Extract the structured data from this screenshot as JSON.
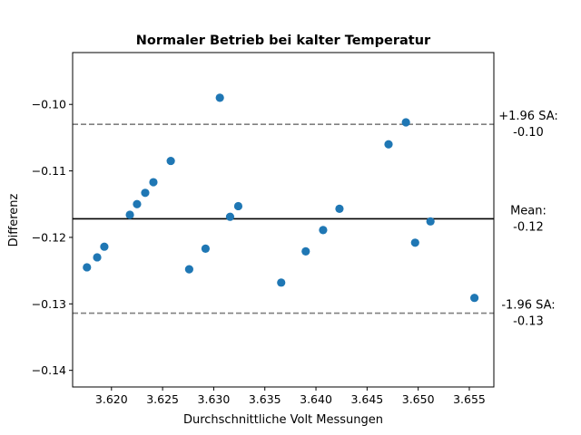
{
  "chart_data": {
    "type": "scatter",
    "title": "Normaler Betrieb bei kalter Temperatur",
    "xlabel": "Durchschnittliche Volt Messungen",
    "ylabel": "Differenz",
    "xlim": [
      3.6162,
      3.6574
    ],
    "ylim": [
      -0.1425,
      -0.0922
    ],
    "xticks": [
      3.62,
      3.625,
      3.63,
      3.635,
      3.64,
      3.645,
      3.65,
      3.655
    ],
    "xtick_labels": [
      "3.620",
      "3.625",
      "3.630",
      "3.635",
      "3.640",
      "3.645",
      "3.650",
      "3.655"
    ],
    "yticks": [
      -0.1,
      -0.11,
      -0.12,
      -0.13,
      -0.14
    ],
    "ytick_labels": [
      "−0.10",
      "−0.11",
      "−0.12",
      "−0.13",
      "−0.14"
    ],
    "grid": false,
    "point_color": "#1f77b4",
    "series": [
      {
        "x": [
          3.6176,
          3.6186,
          3.6193,
          3.6218,
          3.6225,
          3.6233,
          3.6241,
          3.6258,
          3.6276,
          3.6292,
          3.6306,
          3.6316,
          3.6324,
          3.6366,
          3.639,
          3.6407,
          3.6423,
          3.6471,
          3.6488,
          3.6497,
          3.6512,
          3.6555
        ],
        "y": [
          -0.1245,
          -0.123,
          -0.1214,
          -0.1166,
          -0.115,
          -0.1133,
          -0.1117,
          -0.1085,
          -0.1248,
          -0.1217,
          -0.099,
          -0.1169,
          -0.1153,
          -0.1268,
          -0.1221,
          -0.1189,
          -0.1157,
          -0.106,
          -0.1027,
          -0.1208,
          -0.1176,
          -0.1291
        ]
      }
    ],
    "reference_lines": [
      {
        "label": "+1.96 SA:",
        "value_label": "-0.10",
        "y": -0.103,
        "style": "dashed",
        "color": "#808080"
      },
      {
        "label": "Mean:",
        "value_label": "-0.12",
        "y": -0.1172,
        "style": "solid",
        "color": "#000000"
      },
      {
        "label": "-1.96 SA:",
        "value_label": "-0.13",
        "y": -0.1314,
        "style": "dashed",
        "color": "#808080"
      }
    ]
  }
}
